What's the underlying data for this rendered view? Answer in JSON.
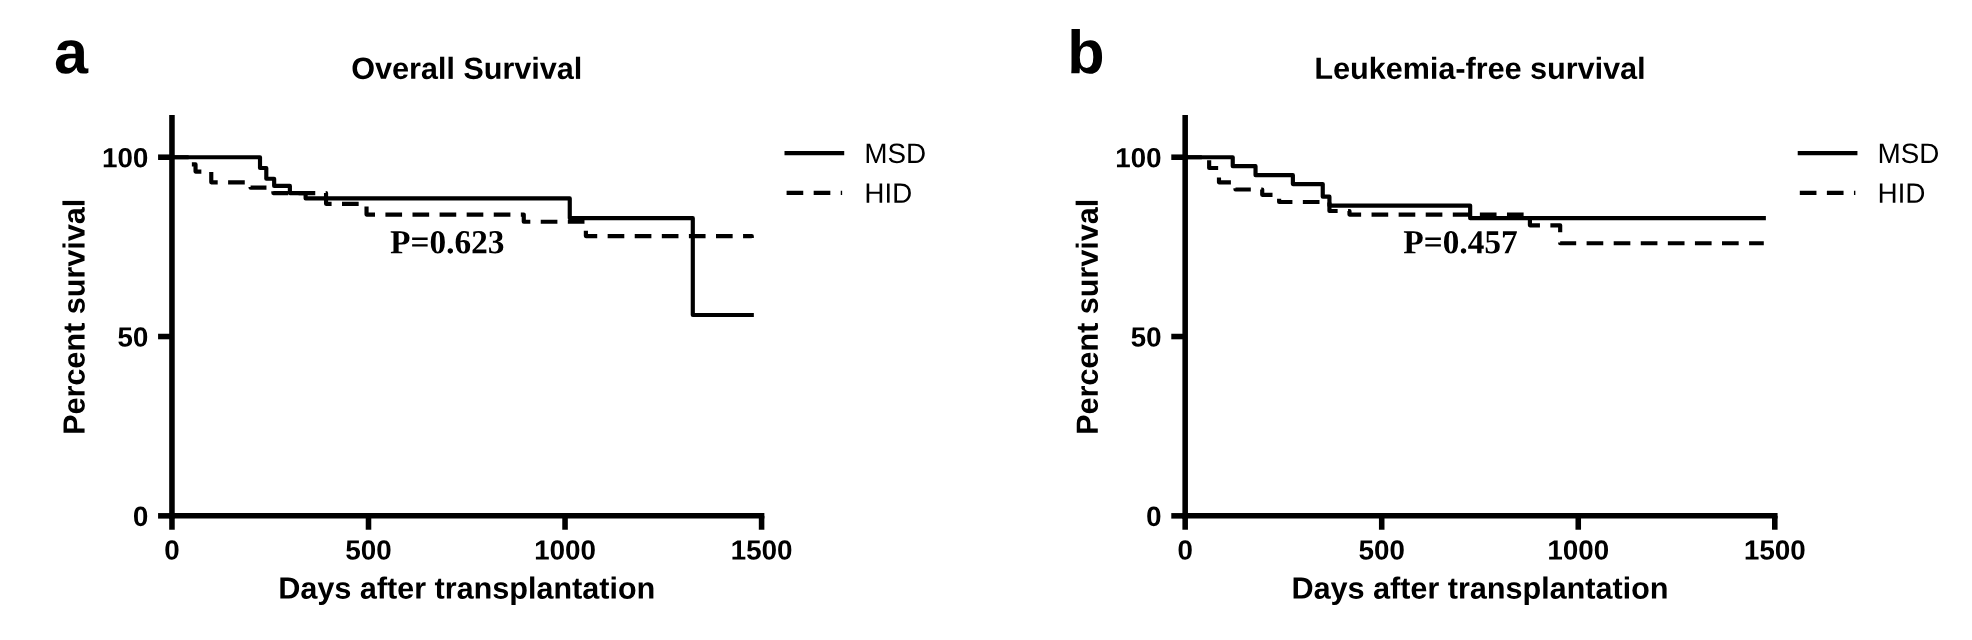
{
  "chart_data": [
    {
      "type": "step",
      "title": "Overall Survival",
      "xlabel": "Days after transplantation",
      "ylabel": "Percent survival",
      "annotations": [
        "a",
        "P=0.623"
      ],
      "xlim": [
        0,
        1500
      ],
      "ylim": [
        0,
        111
      ],
      "xticks": [
        0,
        500,
        1000,
        1500
      ],
      "yticks": [
        0,
        50,
        100
      ],
      "legend": "top right",
      "grid": false,
      "series": [
        {
          "name": "MSD",
          "color": "#000000",
          "line_style": "solid",
          "x": [
            0,
            224,
            240,
            260,
            300,
            340,
            1012,
            1325,
            1475
          ],
          "values": [
            100,
            97,
            94,
            92,
            90,
            88.5,
            83,
            56,
            56
          ]
        },
        {
          "name": "HID",
          "color": "#000000",
          "line_style": "dashed",
          "x": [
            0,
            46,
            60,
            100,
            200,
            258,
            392,
            495,
            895,
            1053,
            1475
          ],
          "values": [
            100,
            98,
            96,
            93,
            91.5,
            90,
            87,
            84,
            82,
            78,
            77.5
          ]
        }
      ]
    },
    {
      "type": "step",
      "title": "Leukemia-free survival",
      "xlabel": "Days after transplantation",
      "ylabel": "Percent survival",
      "annotations": [
        "b",
        "P=0.457"
      ],
      "xlim": [
        0,
        1500
      ],
      "ylim": [
        0,
        111
      ],
      "xticks": [
        0,
        500,
        1000,
        1500
      ],
      "yticks": [
        0,
        50,
        100
      ],
      "legend": "top right",
      "grid": false,
      "series": [
        {
          "name": "MSD",
          "color": "#000000",
          "line_style": "solid",
          "x": [
            0,
            121,
            179,
            274,
            350,
            367,
            725,
            1472
          ],
          "values": [
            100,
            97.5,
            95,
            92.5,
            89,
            86.5,
            83,
            83
          ]
        },
        {
          "name": "HID",
          "color": "#000000",
          "line_style": "dashed",
          "x": [
            0,
            61,
            86,
            128,
            196,
            239,
            367,
            418,
            877,
            954,
            1472
          ],
          "values": [
            100,
            97,
            93,
            91,
            89.5,
            87.5,
            85,
            84,
            81,
            76,
            76
          ]
        }
      ]
    }
  ]
}
